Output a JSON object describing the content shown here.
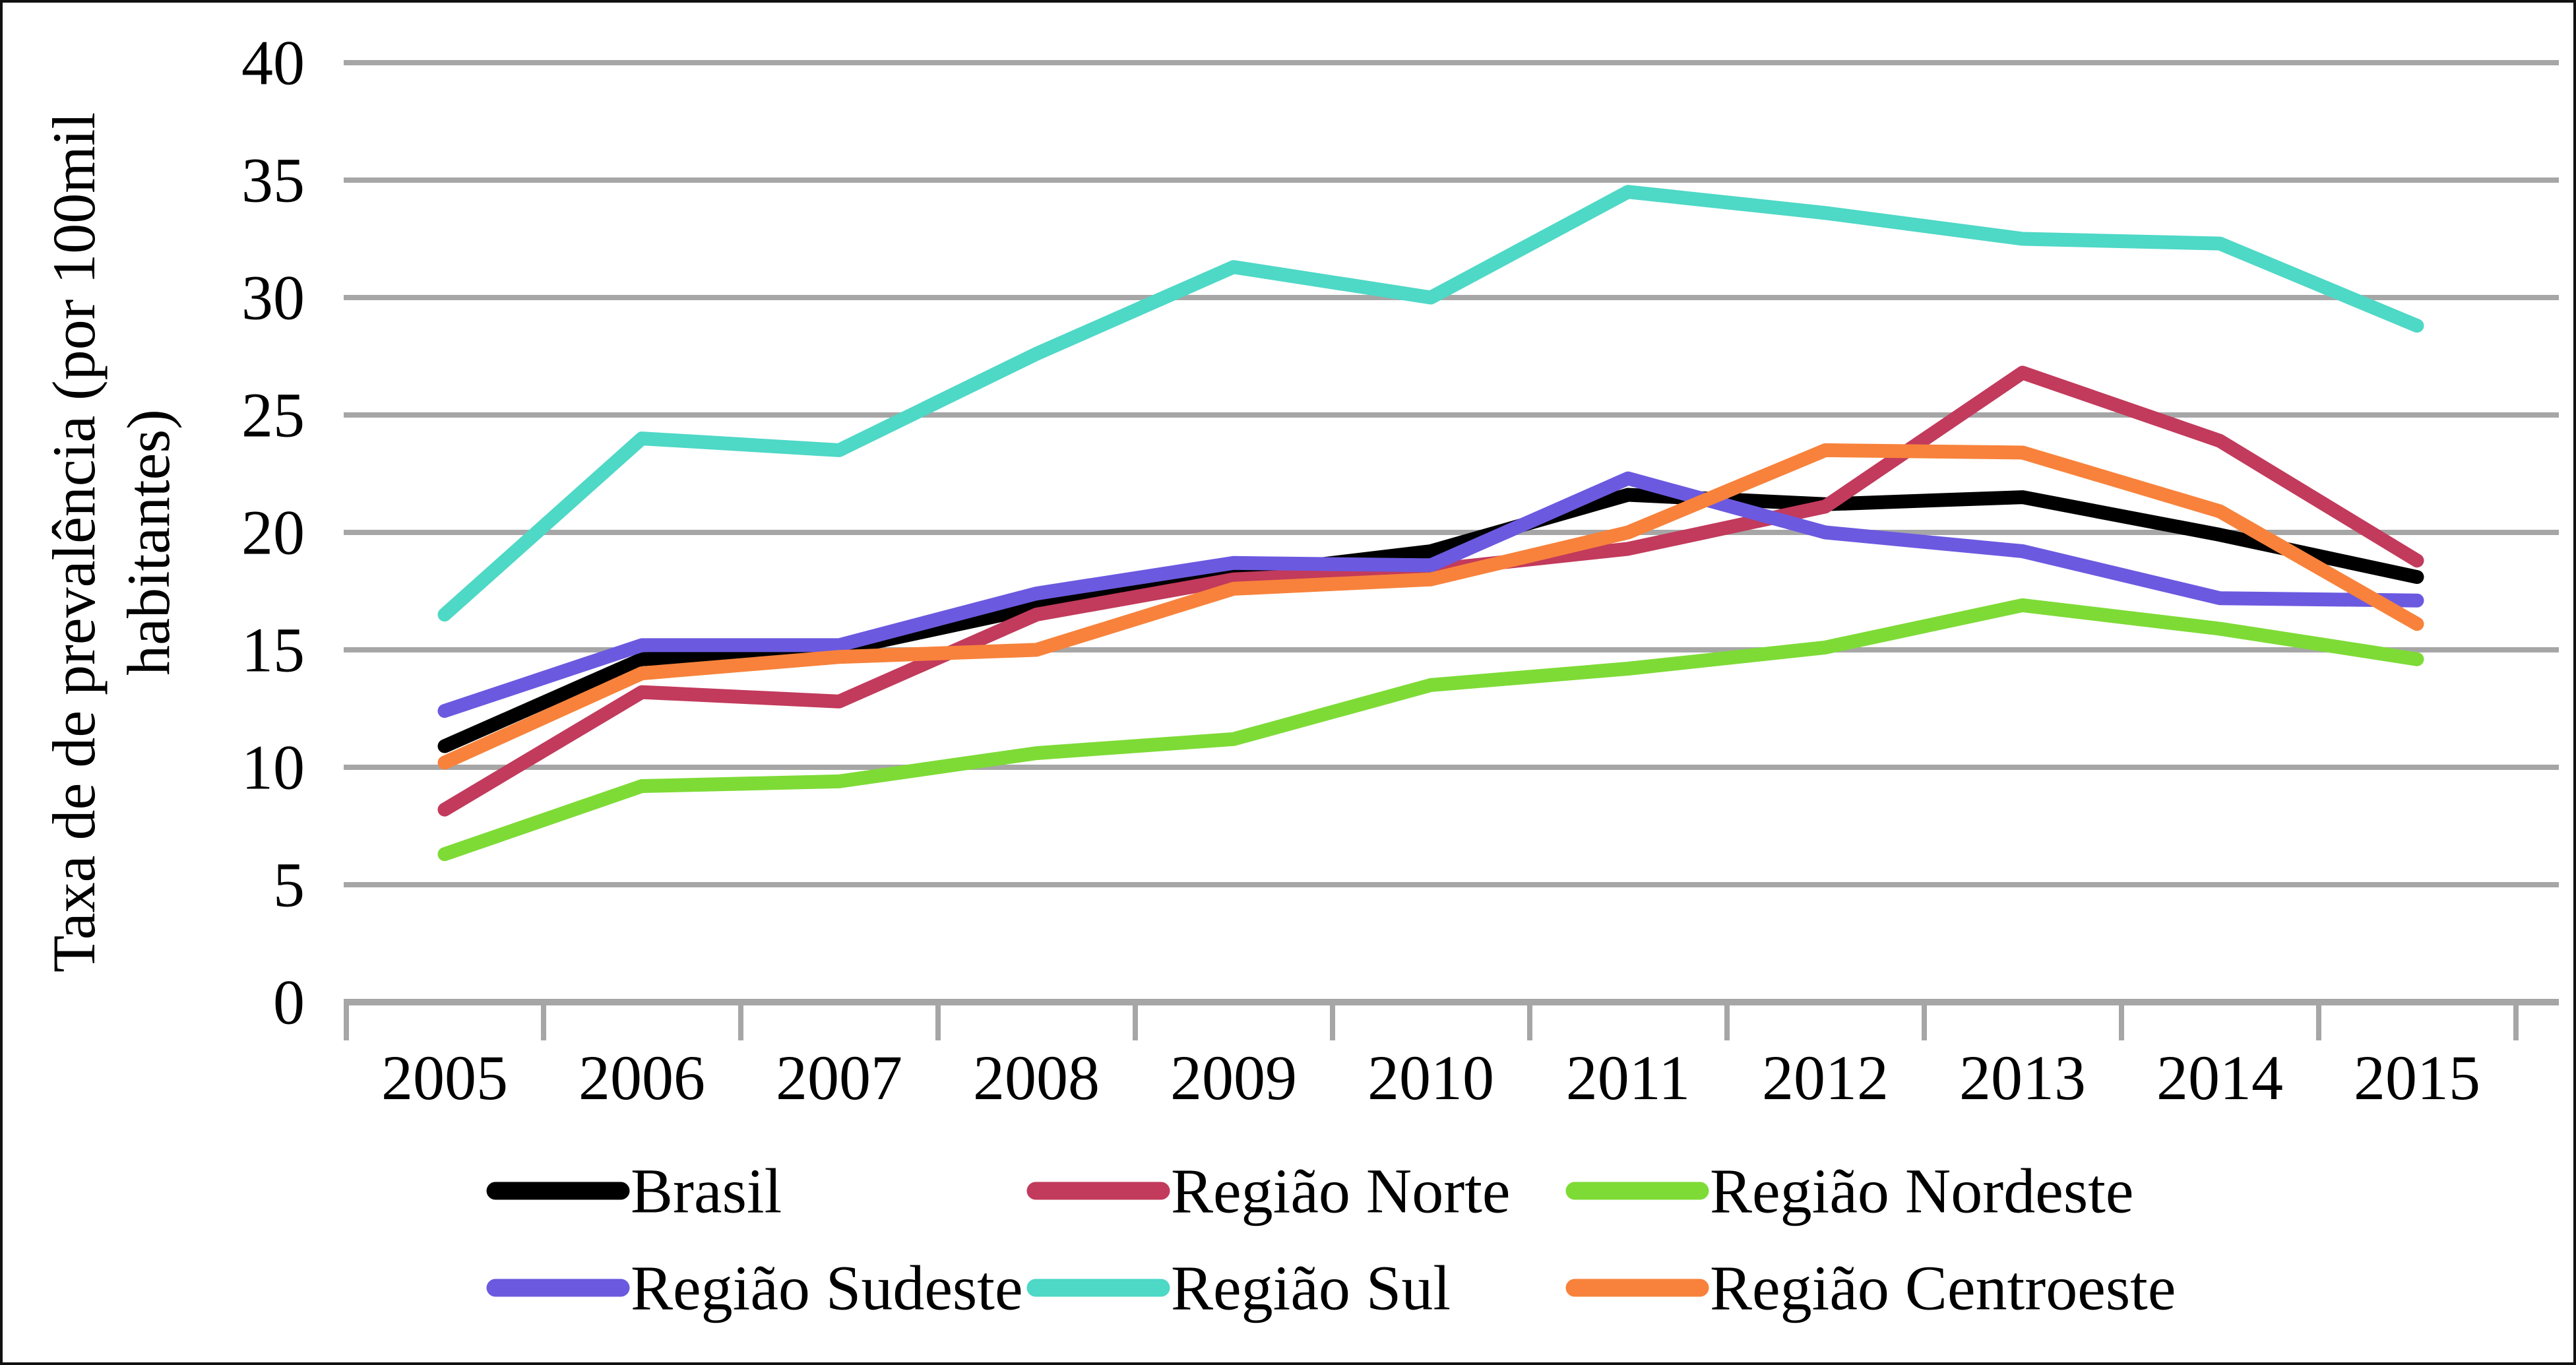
{
  "chart_data": {
    "type": "line",
    "title": "",
    "ylabel_line1": "Taxa de de prevalência (por 100mil",
    "ylabel_line2": "habitantes)",
    "xlabel": "",
    "categories": [
      "2005",
      "2006",
      "2007",
      "2008",
      "2009",
      "2010",
      "2011",
      "2012",
      "2013",
      "2014",
      "2015"
    ],
    "series": [
      {
        "name": "Brasil",
        "color": "#000000",
        "values": [
          10.9,
          14.6,
          15.0,
          16.8,
          18.2,
          19.2,
          21.6,
          21.2,
          21.5,
          19.9,
          18.1
        ]
      },
      {
        "name": "Região Norte",
        "color": "#C23A5C",
        "values": [
          8.2,
          13.2,
          12.8,
          16.5,
          18.0,
          18.4,
          19.3,
          21.1,
          26.8,
          23.9,
          18.8
        ]
      },
      {
        "name": "Região Nordeste",
        "color": "#7EDB36",
        "values": [
          6.3,
          9.2,
          9.4,
          10.6,
          11.2,
          13.5,
          14.2,
          15.1,
          16.9,
          15.9,
          14.6
        ]
      },
      {
        "name": "Região Sudeste",
        "color": "#6B59E0",
        "values": [
          12.4,
          15.2,
          15.2,
          17.4,
          18.7,
          18.6,
          22.3,
          20.0,
          19.2,
          17.2,
          17.1
        ]
      },
      {
        "name": "Região Sul",
        "color": "#4ED8C6",
        "values": [
          16.5,
          24.0,
          23.5,
          27.6,
          31.3,
          30.0,
          34.5,
          33.6,
          32.5,
          32.3,
          28.8
        ]
      },
      {
        "name": "Região Centroeste",
        "color": "#F8823B",
        "values": [
          10.2,
          14.0,
          14.7,
          15.0,
          17.6,
          18.0,
          20.0,
          23.5,
          23.4,
          20.9,
          16.1
        ]
      }
    ],
    "y_ticks": [
      "0",
      "5",
      "10",
      "15",
      "20",
      "25",
      "30",
      "35",
      "40"
    ],
    "ylim": [
      0,
      40
    ],
    "ytick_step": 5,
    "grid": true,
    "grid_color": "#A6A6A6",
    "axis_color": "#A6A6A6",
    "text_color": "#000000",
    "legend_position": "bottom",
    "legend_rows": [
      [
        0,
        1,
        2
      ],
      [
        3,
        4,
        5
      ]
    ]
  }
}
